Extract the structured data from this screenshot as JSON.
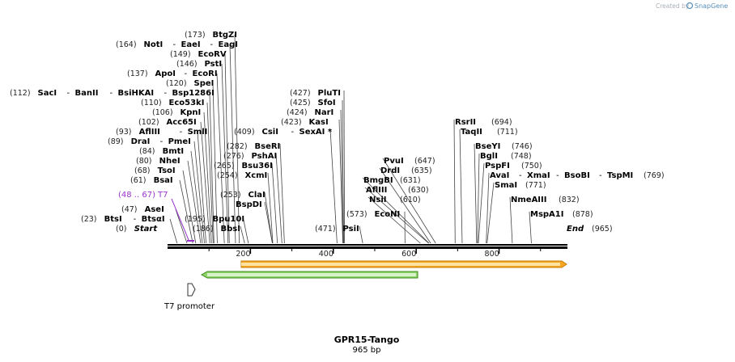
{
  "credit": {
    "prefix": "Created by",
    "brand": "SnapGene"
  },
  "sequence": {
    "name": "GPR15-Tango",
    "length_label": "965 bp",
    "length_bp": 965
  },
  "ruler_ticks": [
    {
      "bp": 200,
      "label": "200"
    },
    {
      "bp": 400,
      "label": "400"
    },
    {
      "bp": 600,
      "label": "600"
    },
    {
      "bp": 800,
      "label": "800"
    }
  ],
  "features": {
    "t7_primer": {
      "name": "T7",
      "range_label": "(48 .. 67)",
      "start": 48,
      "end": 67,
      "color": "#9933cc"
    },
    "t7_promoter": {
      "name": "T7 promoter"
    },
    "orange_feature": {
      "start": 183,
      "end": 965,
      "color": "#f5a623"
    },
    "green_feature": {
      "start": 85,
      "end": 600,
      "color": "#6cc04a"
    }
  },
  "left_sites": [
    {
      "pos": 173,
      "num": "(173)",
      "names": [
        "BtgZI"
      ],
      "sep": ""
    },
    {
      "pos": 164,
      "num": "(164)",
      "names": [
        "NotI",
        "EaeI",
        "EagI"
      ],
      "sep": ""
    },
    {
      "pos": 149,
      "num": "(149)",
      "names": [
        "EcoRV"
      ],
      "sep": ""
    },
    {
      "pos": 146,
      "num": "(146)",
      "names": [
        "PstI"
      ],
      "sep": ""
    },
    {
      "pos": 137,
      "num": "(137)",
      "names": [
        "ApoI",
        "EcoRI"
      ],
      "sep": ""
    },
    {
      "pos": 120,
      "num": "(120)",
      "names": [
        "SpeI"
      ],
      "sep": ""
    },
    {
      "pos": 112,
      "num": "(112)",
      "names": [
        "SacI",
        "BanII",
        "BsiHKAI",
        "Bsp1286I"
      ],
      "sep": ""
    },
    {
      "pos": 110,
      "num": "(110)",
      "names": [
        "Eco53kI"
      ],
      "sep": ""
    },
    {
      "pos": 106,
      "num": "(106)",
      "names": [
        "KpnI"
      ],
      "sep": ""
    },
    {
      "pos": 102,
      "num": "(102)",
      "names": [
        "Acc65I"
      ],
      "sep": ""
    },
    {
      "pos": 93,
      "num": "(93)",
      "names": [
        "AflIII",
        "SmlI"
      ],
      "sep": ""
    },
    {
      "pos": 89,
      "num": "(89)",
      "names": [
        "DraI",
        "PmeI"
      ],
      "sep": ""
    },
    {
      "pos": 84,
      "num": "(84)",
      "names": [
        "BmtI"
      ],
      "sep": ""
    },
    {
      "pos": 80,
      "num": "(80)",
      "names": [
        "NheI"
      ],
      "sep": ""
    },
    {
      "pos": 68,
      "num": "(68)",
      "names": [
        "TsoI"
      ],
      "sep": ""
    },
    {
      "pos": 61,
      "num": "(61)",
      "names": [
        "BsaI"
      ],
      "sep": ""
    },
    {
      "pos": 47,
      "num": "(47)",
      "names": [
        "AseI"
      ],
      "sep": ""
    },
    {
      "pos": 23,
      "num": "(23)",
      "names": [
        "BtsI",
        "BtsαI"
      ],
      "sep": ""
    },
    {
      "pos": 0,
      "num": "(0)",
      "names": [
        "Start"
      ],
      "sep": "",
      "italic": true
    }
  ],
  "mid_sites": [
    {
      "pos": 282,
      "num": "(282)",
      "names": [
        "BseRI"
      ]
    },
    {
      "pos": 276,
      "num": "(276)",
      "names": [
        "PshAI"
      ]
    },
    {
      "pos": 265,
      "num": "(265)",
      "names": [
        "Bsu36I"
      ]
    },
    {
      "pos": 254,
      "num": "(254)",
      "names": [
        "XcmI"
      ]
    },
    {
      "pos": 253,
      "num": "(253)",
      "names": [
        "ClaI"
      ]
    },
    {
      "pos": 253,
      "num": "",
      "names": [
        "BspDI"
      ]
    },
    {
      "pos": 195,
      "num": "(195)",
      "names": [
        "Bpu10I"
      ]
    },
    {
      "pos": 186,
      "num": "(186)",
      "names": [
        "BbsI"
      ]
    }
  ],
  "center_sites": [
    {
      "pos": 427,
      "num": "(427)",
      "names": [
        "PluTI"
      ]
    },
    {
      "pos": 425,
      "num": "(425)",
      "names": [
        "SfoI"
      ]
    },
    {
      "pos": 424,
      "num": "(424)",
      "names": [
        "NarI"
      ]
    },
    {
      "pos": 423,
      "num": "(423)",
      "names": [
        "KasI"
      ]
    },
    {
      "pos": 409,
      "num": "(409)",
      "names": [
        "CsiI",
        "SexAI *"
      ]
    },
    {
      "pos": 471,
      "num": "(471)",
      "names": [
        "PsiI"
      ]
    },
    {
      "pos": 573,
      "num": "(573)",
      "names": [
        "EcoNI"
      ]
    }
  ],
  "right_sites": [
    {
      "pos": 647,
      "num": "(647)",
      "names": [
        "PvuI"
      ]
    },
    {
      "pos": 635,
      "num": "(635)",
      "names": [
        "DrdI"
      ]
    },
    {
      "pos": 631,
      "num": "(631)",
      "names": [
        "BmgBI"
      ]
    },
    {
      "pos": 630,
      "num": "(630)",
      "names": [
        "AflIII"
      ]
    },
    {
      "pos": 610,
      "num": "(610)",
      "names": [
        "NsiI"
      ]
    },
    {
      "pos": 694,
      "num": "(694)",
      "names": [
        "RsrII"
      ]
    },
    {
      "pos": 711,
      "num": "(711)",
      "names": [
        "TaqII"
      ]
    },
    {
      "pos": 746,
      "num": "(746)",
      "names": [
        "BseYI"
      ]
    },
    {
      "pos": 748,
      "num": "(748)",
      "names": [
        "BglI"
      ]
    },
    {
      "pos": 750,
      "num": "(750)",
      "names": [
        "PspFI"
      ]
    },
    {
      "pos": 769,
      "num": "(769)",
      "names": [
        "AvaI",
        "XmaI",
        "BsoBI",
        "TspMI"
      ]
    },
    {
      "pos": 771,
      "num": "(771)",
      "names": [
        "SmaI"
      ]
    },
    {
      "pos": 832,
      "num": "(832)",
      "names": [
        "NmeAIII"
      ]
    },
    {
      "pos": 878,
      "num": "(878)",
      "names": [
        "MspA1I"
      ]
    },
    {
      "pos": 965,
      "num": "(965)",
      "names": [
        "End"
      ],
      "italic": true
    }
  ]
}
